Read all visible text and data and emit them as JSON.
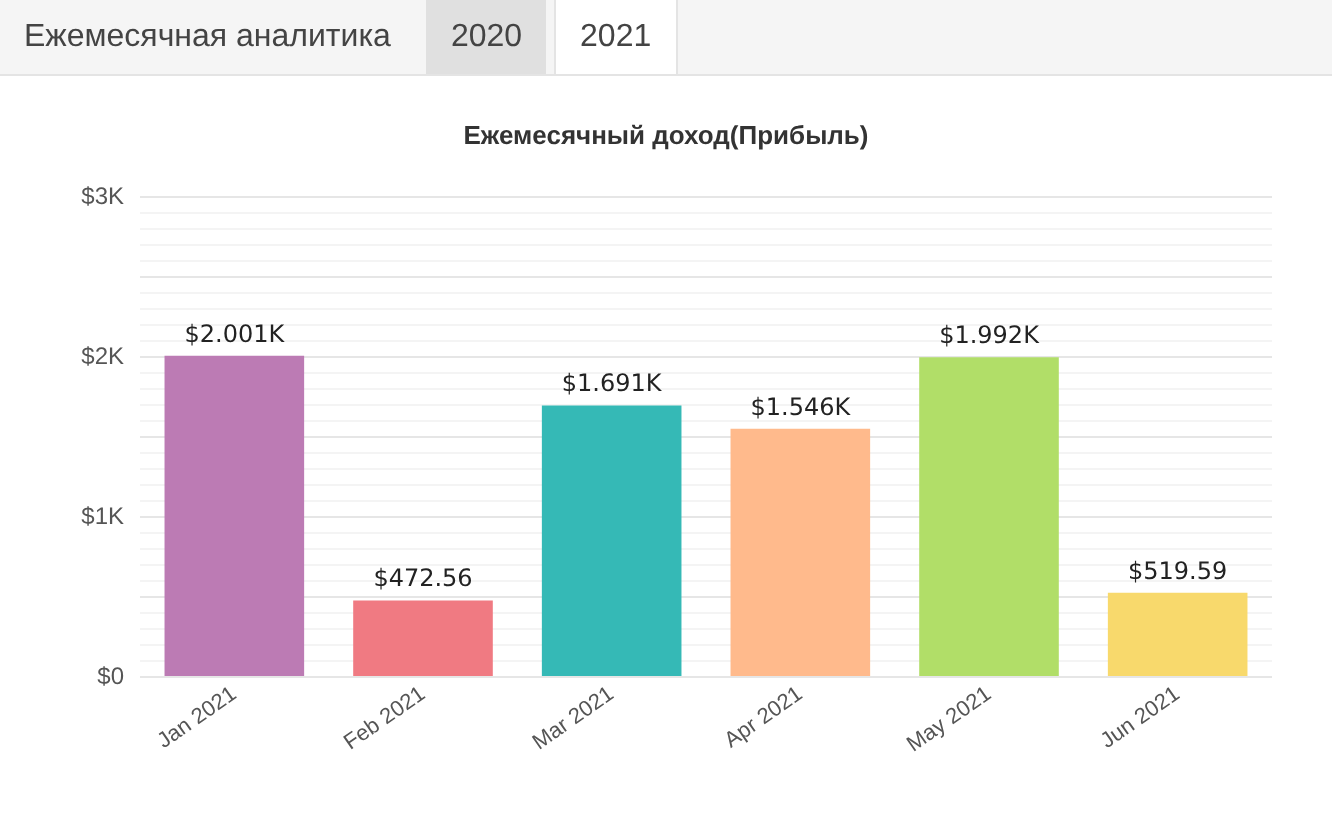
{
  "chart_data": {
    "type": "bar",
    "title": "Ежемесячный доход(Прибыль)",
    "annotations": [
      "Ежемесячная аналитика",
      "2020",
      "2021"
    ],
    "categories": [
      "Jan 2021",
      "Feb 2021",
      "Mar 2021",
      "Apr 2021",
      "May 2021",
      "Jun 2021"
    ],
    "values": [
      2001,
      472.56,
      1691,
      1546,
      1992,
      519.59
    ],
    "value_labels": [
      "$2.001K",
      "$472.56",
      "$1.691K",
      "$1.546K",
      "$1.992K",
      "$519.59"
    ],
    "colors": [
      "#bc7bb4",
      "#f07a82",
      "#35b9b6",
      "#ffba8c",
      "#b1de68",
      "#f8d96c"
    ],
    "ylim": [
      0,
      3000
    ],
    "yticks": [
      {
        "value": 0,
        "label": "$0"
      },
      {
        "value": 1000,
        "label": "$1K"
      },
      {
        "value": 2000,
        "label": "$2K"
      },
      {
        "value": 3000,
        "label": "$3K"
      }
    ],
    "grid": "y"
  }
}
